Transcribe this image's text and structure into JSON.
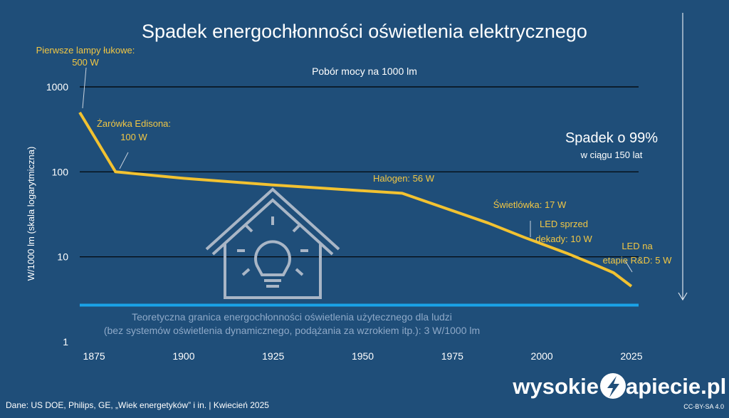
{
  "chart_data": {
    "type": "line",
    "title": "Spadek energochłonności oświetlenia elektrycznego",
    "subtitle": "Pobór mocy na 1000 lm",
    "ylabel": "W/1000 lm (skala logarytmiczna)",
    "xlabel": "",
    "y_scale": "log",
    "ylim": [
      1,
      1000
    ],
    "xlim": [
      1871,
      2027
    ],
    "y_ticks": [
      "1",
      "10",
      "100",
      "1000"
    ],
    "x_ticks": [
      "1875",
      "1900",
      "1925",
      "1950",
      "1975",
      "2000",
      "2025"
    ],
    "grid": true,
    "line_color": "#f2c231",
    "limit_color": "#1aa3e8",
    "series": [
      {
        "points": [
          {
            "x": 1871,
            "y": 500
          },
          {
            "x": 1881,
            "y": 100
          },
          {
            "x": 1900,
            "y": 84
          },
          {
            "x": 1925,
            "y": 70
          },
          {
            "x": 1961,
            "y": 56
          },
          {
            "x": 1985,
            "y": 25
          },
          {
            "x": 1995,
            "y": 17
          },
          {
            "x": 2007,
            "y": 11
          },
          {
            "x": 2015,
            "y": 8
          },
          {
            "x": 2020,
            "y": 6.5
          },
          {
            "x": 2025,
            "y": 4.5
          }
        ]
      }
    ],
    "limit_value": 2.7,
    "annotations": {
      "arc_line1": "Pierwsze lampy łukowe:",
      "arc_line2": "500 W",
      "edison_line1": "Żarówka Edisona:",
      "edison_line2": "100 W",
      "halogen": "Halogen: 56 W",
      "fluorescent": "Świetlówka: 17 W",
      "led_old_line1": "LED sprzed",
      "led_old_line2": "dekady: 10 W",
      "led_rd_line1": "LED na",
      "led_rd_line2": "etapie R&D: 5 W",
      "drop_big": "Spadek o 99%",
      "drop_small": "w ciągu 150 lat",
      "limit_line1": "Teoretyczna granica energochłonności oświetlenia użytecznego dla ludzi",
      "limit_line2": "(bez systemów oświetlenia dynamicznego, podążania za wzrokiem itp.): 3 W/1000 lm"
    }
  },
  "footer": {
    "source": "Dane: US DOE, Philips, GE, „Wiek energetyków” i in.  |  Kwiecień 2025",
    "license": "CC-BY-SA 4.0",
    "logo_left": "wysokie",
    "logo_right": "apiecie.pl"
  },
  "icons": [
    "house-lightbulb-icon",
    "down-arrow-icon",
    "lightning-logo-icon"
  ]
}
